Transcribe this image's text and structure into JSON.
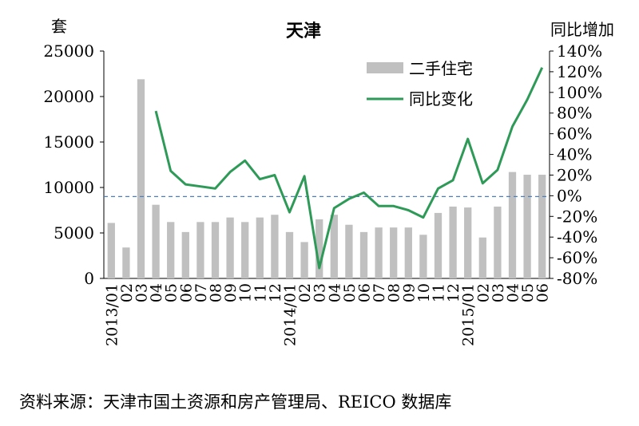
{
  "chart_data": {
    "type": "bar+line",
    "title": "天津",
    "left_axis_unit": "套",
    "right_axis_label": "同比增加",
    "y_left": {
      "min": 0,
      "max": 25000,
      "ticks": [
        0,
        5000,
        10000,
        15000,
        20000,
        25000
      ]
    },
    "y_right": {
      "min": -80,
      "max": 140,
      "ticks": [
        -80,
        -60,
        -40,
        -20,
        0,
        20,
        40,
        60,
        80,
        100,
        120,
        140
      ],
      "suffix": "%"
    },
    "categories": [
      "2013/01",
      "02",
      "03",
      "04",
      "05",
      "06",
      "07",
      "08",
      "09",
      "10",
      "11",
      "12",
      "2014/01",
      "02",
      "03",
      "04",
      "05",
      "06",
      "07",
      "08",
      "09",
      "10",
      "11",
      "12",
      "2015/01",
      "02",
      "03",
      "04",
      "05",
      "06"
    ],
    "series": [
      {
        "name": "二手住宅",
        "type": "bar",
        "color": "#c0c0c0",
        "values": [
          6100,
          3400,
          21900,
          8100,
          6200,
          5100,
          6200,
          6200,
          6700,
          6200,
          6700,
          7000,
          5100,
          4000,
          6500,
          7000,
          5900,
          5100,
          5600,
          5600,
          5600,
          4800,
          7200,
          7900,
          7800,
          4500,
          7900,
          11700,
          11400,
          11400
        ]
      },
      {
        "name": "同比变化",
        "type": "line",
        "color": "#2e9a57",
        "axis": "right",
        "values": [
          null,
          null,
          null,
          82,
          24,
          11,
          9,
          7,
          23,
          34,
          16,
          20,
          -16,
          19,
          -70,
          -12,
          -3,
          3,
          -10,
          -10,
          -14,
          -21,
          7,
          15,
          55,
          12,
          25,
          67,
          93,
          124
        ]
      }
    ],
    "reference_line": {
      "axis": "left",
      "value": 9000,
      "style": "dashed",
      "color": "#4a7fc1"
    },
    "legend": {
      "position": "top-right inside plot",
      "entries": [
        "二手住宅",
        "同比变化"
      ]
    },
    "grid": false
  },
  "source_text": "资料来源：天津市国土资源和房产管理局、REICO 数据库"
}
